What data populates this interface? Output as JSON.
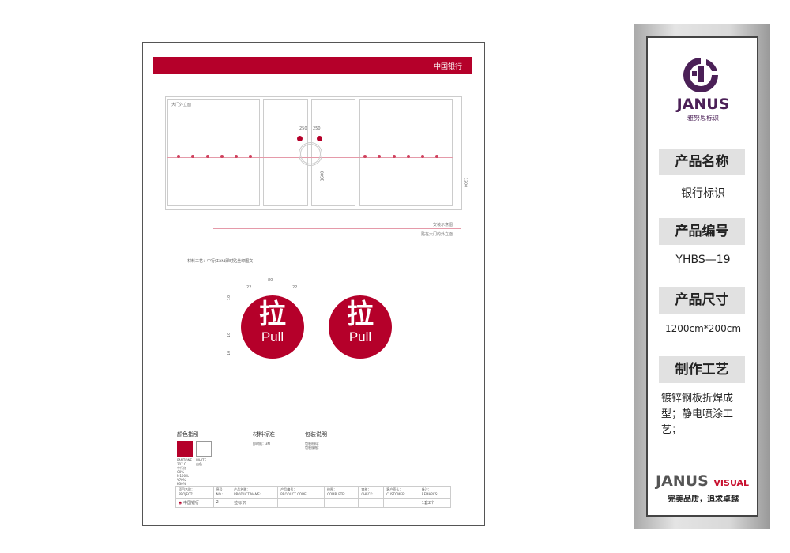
{
  "drawing": {
    "banner_title": "中国银行",
    "elevation_label": "大门外立面",
    "dims": {
      "left_offset": "250",
      "right_offset": "250",
      "height_1600": "1600",
      "height_1300": "1300"
    },
    "caption_title": "安装示意图",
    "caption_sub": "贴在大门的外立面",
    "material_note": "材料工艺：中行红3M即时贴丝印图文",
    "sign_dims": {
      "total": "80",
      "left": "22",
      "right": "22",
      "v1": "10",
      "v2": "10",
      "v3": "10"
    },
    "signs": [
      {
        "zh": "拉",
        "en": "Pull"
      },
      {
        "zh": "拉",
        "en": "Pull"
      }
    ],
    "color_guide": {
      "title": "颜色指引",
      "red_spec": [
        "PANTONE",
        "207 C",
        "中行红",
        "C0%",
        "M100%",
        "Y70%",
        "K30%"
      ],
      "white_spec": [
        "WHITE",
        "白色"
      ],
      "red": "#b5002a"
    },
    "material_std": {
      "title": "材料标准",
      "line": "即时贴：3M"
    },
    "packaging": {
      "title": "包装说明",
      "lines": [
        "包装材料：",
        "包装规格："
      ]
    },
    "table": {
      "headers": [
        "项目名称：\nPROJECT:",
        "序号\nNO.:",
        "产品名称：\nPRODUCT NAME:",
        "产品编号：\nPRODUCT CODE:",
        "绘图：\nCOMPLETE:",
        "审核：\nCHECK:",
        "客户签认：\nCUSTOMER:",
        "备注：\nREMARKS:"
      ],
      "row": [
        "中国银行",
        "2",
        "拉标识",
        "",
        "",
        "",
        "",
        "1套2个"
      ]
    }
  },
  "panel": {
    "brand": "JANUS",
    "brand_sub": "雅努思标识",
    "brand_color": "#4b2057",
    "fields": [
      {
        "label": "产品名称",
        "value": "银行标识"
      },
      {
        "label": "产品编号",
        "value": "YHBS—19"
      },
      {
        "label": "产品尺寸",
        "value": "1200cm*200cm"
      },
      {
        "label": "制作工艺",
        "value": "镀锌钢板折焊成型；静电喷涂工艺；"
      }
    ],
    "footer_brand": "JANUS",
    "footer_visual": "VISUAL",
    "slogan": "完美品质，追求卓越"
  }
}
